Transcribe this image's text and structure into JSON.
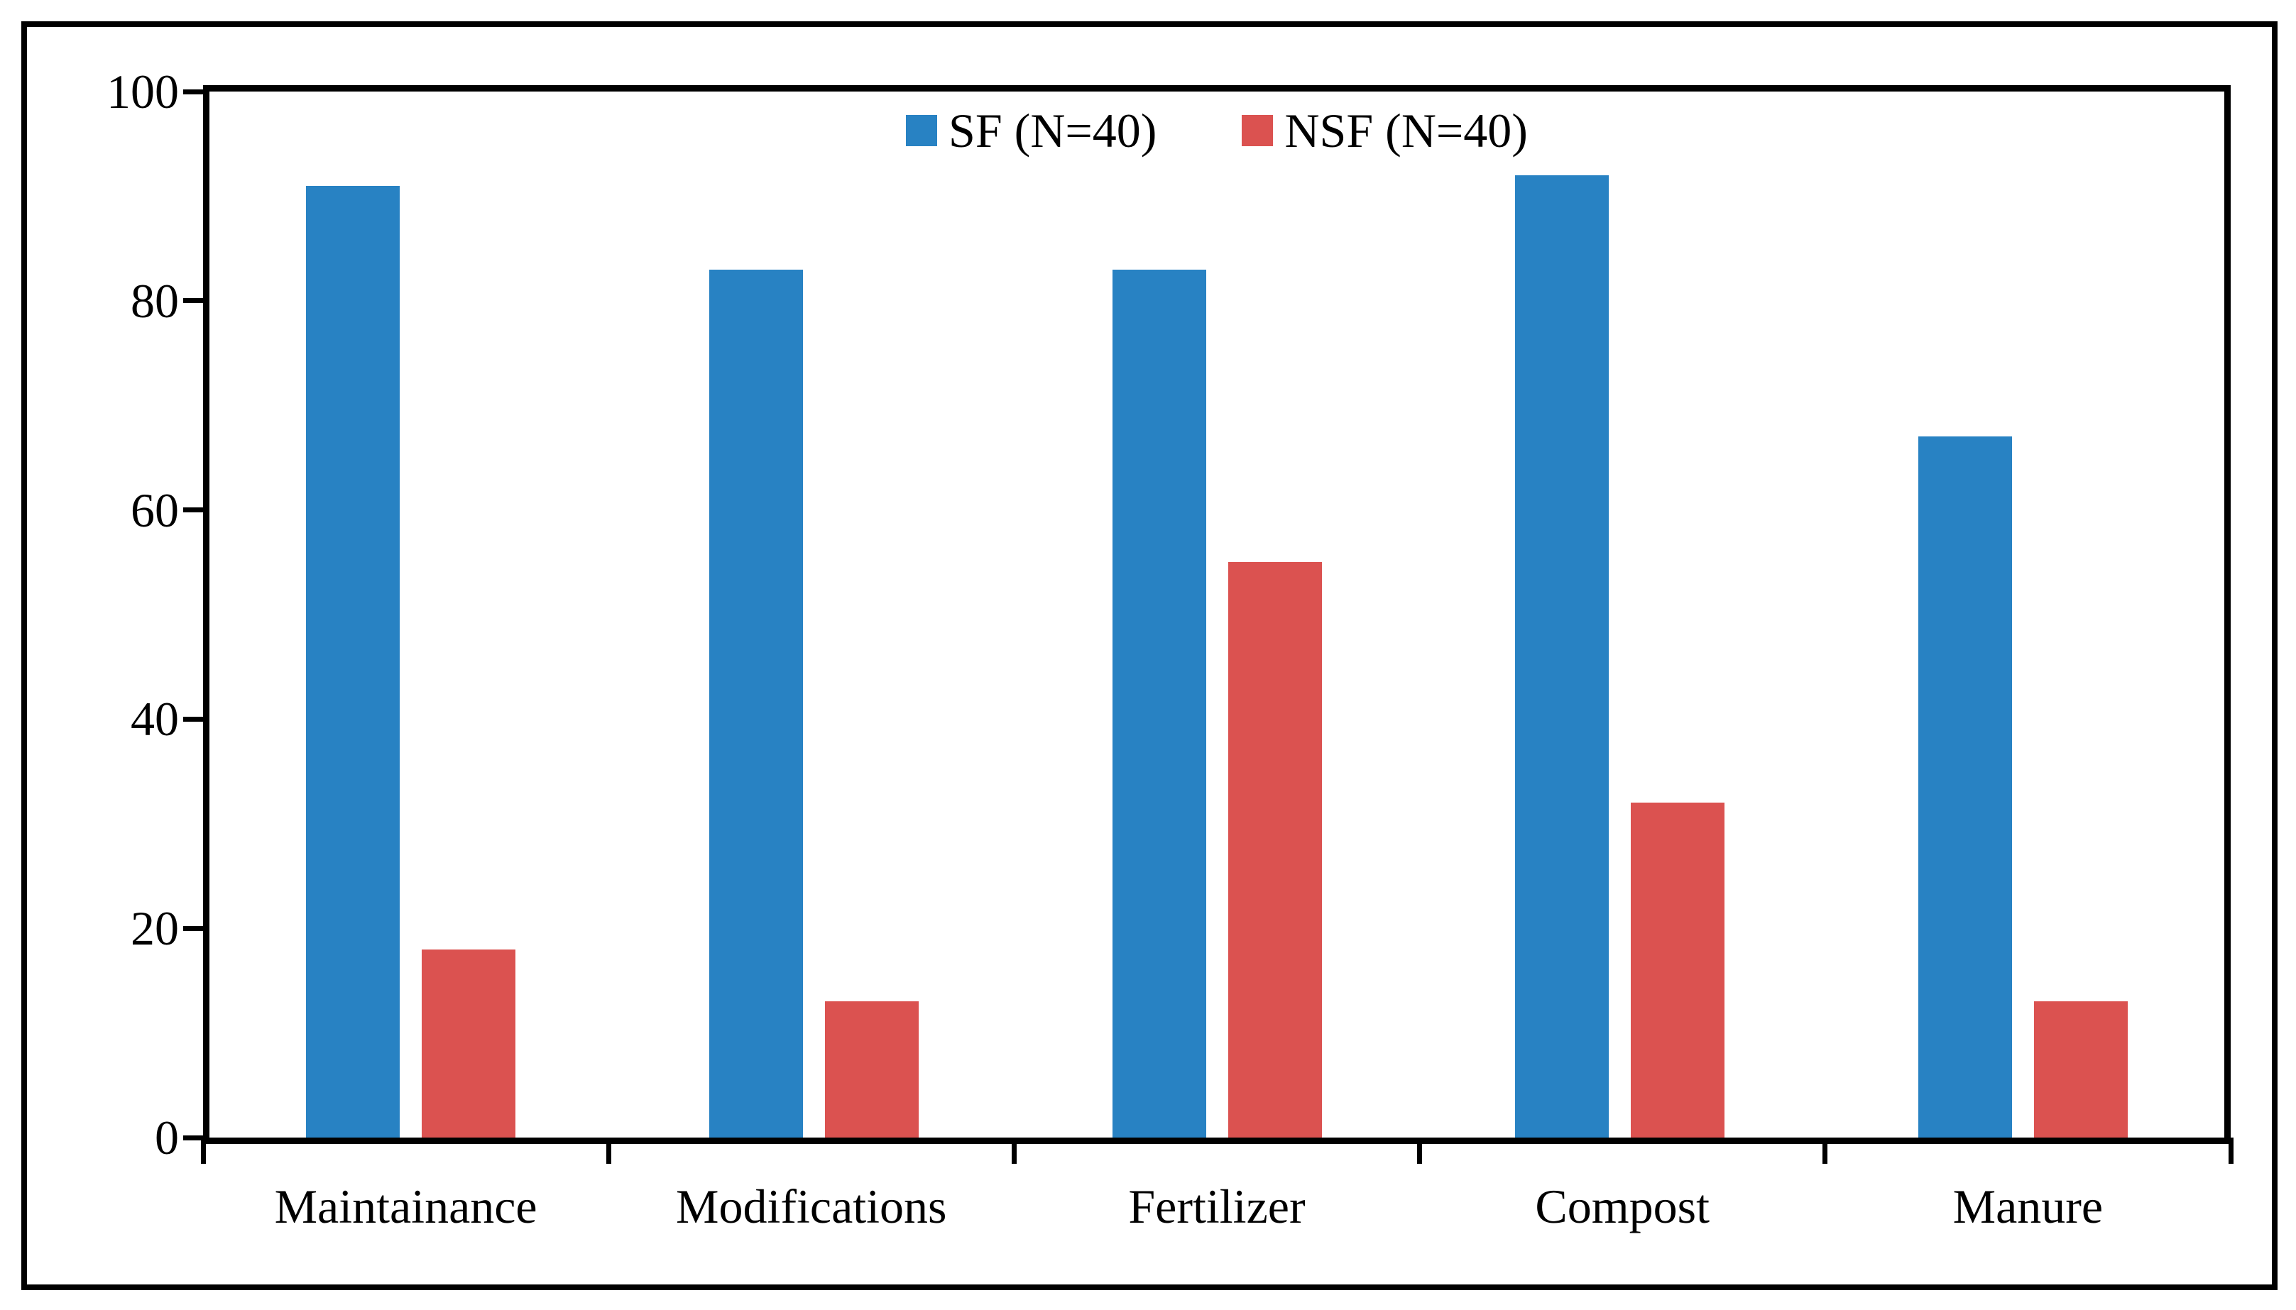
{
  "figure": {
    "background_color": "#ffffff",
    "border_color": "#000000"
  },
  "legend": {
    "position": "top-center",
    "items": [
      {
        "label": "SF (N=40)",
        "color": "#2882C3"
      },
      {
        "label": "NSF (N=40)",
        "color": "#DB5250"
      }
    ]
  },
  "chart_data": {
    "type": "bar",
    "title": "",
    "xlabel": "",
    "ylabel": "",
    "categories": [
      "Maintainance",
      "Modifications",
      "Fertilizer",
      "Compost",
      "Manure"
    ],
    "series": [
      {
        "name": "SF (N=40)",
        "color": "#2882C3",
        "values": [
          91,
          83,
          83,
          92,
          67
        ]
      },
      {
        "name": "NSF (N=40)",
        "color": "#DB5250",
        "values": [
          18,
          13,
          55,
          32,
          13
        ]
      }
    ],
    "ylim": [
      0,
      100
    ],
    "y_ticks": [
      0,
      20,
      40,
      60,
      80,
      100
    ],
    "grid": false,
    "legend_position": "top-center",
    "axis_color": "#000000"
  }
}
